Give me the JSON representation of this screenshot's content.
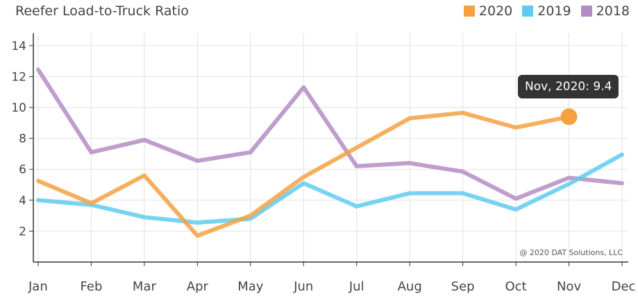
{
  "chart_data": {
    "type": "line",
    "title": "Reefer Load-to-Truck Ratio",
    "categories": [
      "Jan",
      "Feb",
      "Mar",
      "Apr",
      "May",
      "Jun",
      "Jul",
      "Aug",
      "Sep",
      "Oct",
      "Nov",
      "Dec"
    ],
    "series": [
      {
        "name": "2020",
        "color": "#f5a142",
        "values": [
          5.25,
          3.8,
          5.6,
          1.7,
          3.0,
          5.5,
          7.4,
          9.3,
          9.65,
          8.7,
          9.4,
          null
        ]
      },
      {
        "name": "2019",
        "color": "#5fcbf0",
        "values": [
          4.0,
          3.7,
          2.9,
          2.55,
          2.8,
          5.1,
          3.6,
          4.45,
          4.45,
          3.4,
          5.05,
          6.95
        ]
      },
      {
        "name": "2018",
        "color": "#b48cc4",
        "values": [
          12.45,
          7.1,
          7.9,
          6.55,
          7.1,
          11.3,
          6.2,
          6.4,
          5.85,
          4.1,
          5.45,
          5.1
        ]
      }
    ],
    "ylim": [
      0,
      14.8
    ],
    "yticks": [
      2,
      4,
      6,
      8,
      10,
      12,
      14
    ],
    "grid": true,
    "legend": "top-right",
    "tooltip": {
      "series": "2020",
      "category": "Nov",
      "text": "Nov, 2020: 9.4"
    },
    "credit": "@ 2020 DAT Solutions, LLC"
  }
}
